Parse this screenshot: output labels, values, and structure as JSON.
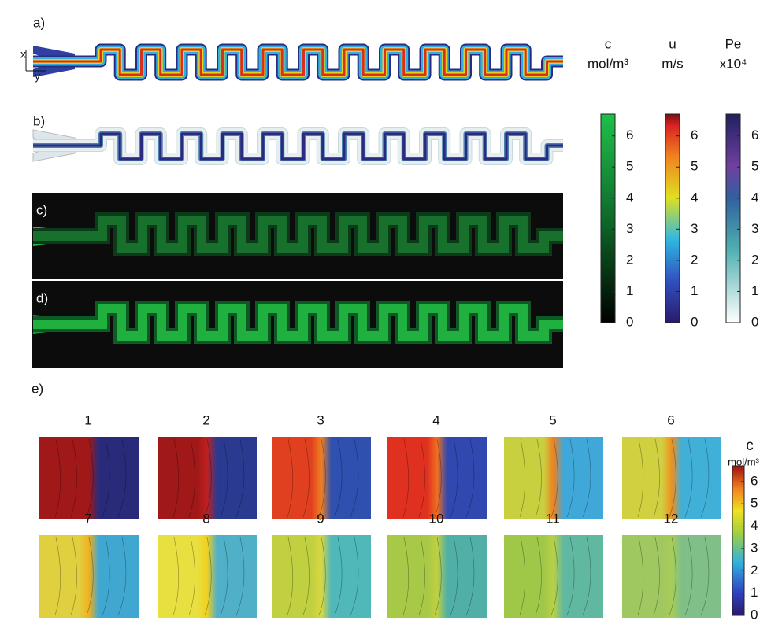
{
  "panels": {
    "a": "a)",
    "b": "b)",
    "c": "c)",
    "d": "d)",
    "e": "e)"
  },
  "axes": {
    "x": "x",
    "y": "y"
  },
  "colorbars": [
    {
      "title": "c",
      "unit": "mol/m³",
      "ticks": [
        0,
        1,
        2,
        3,
        4,
        5,
        6
      ],
      "lim": [
        0,
        6.7
      ]
    },
    {
      "title": "u",
      "unit": "m/s",
      "ticks": [
        0,
        1,
        2,
        3,
        4,
        5,
        6
      ],
      "lim": [
        0,
        6.7
      ]
    },
    {
      "title": "Pe",
      "unit": "x10⁴",
      "ticks": [
        0,
        1,
        2,
        3,
        4,
        5,
        6
      ],
      "lim": [
        0,
        6.7
      ]
    }
  ],
  "snapshots": {
    "labels": [
      1,
      2,
      3,
      4,
      5,
      6,
      7,
      8,
      9,
      10,
      11,
      12
    ],
    "colorbar": {
      "title": "c",
      "unit": "mol/m³",
      "ticks": [
        0,
        1,
        2,
        3,
        4,
        5,
        6
      ],
      "lim": [
        0,
        6.7
      ]
    }
  }
}
